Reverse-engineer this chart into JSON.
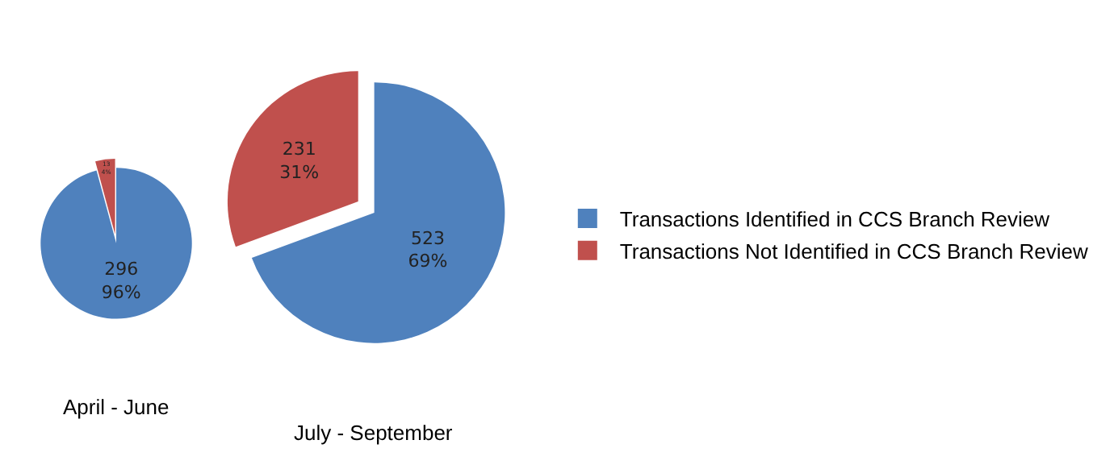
{
  "chart_data": [
    {
      "type": "pie",
      "title": "April - June",
      "categories": [
        null,
        null
      ],
      "values": [
        296,
        13
      ],
      "colors": [
        "#4f81bd",
        "#c0504d"
      ],
      "value_labels": [
        "296\n96%",
        "13\n4%"
      ]
    },
    {
      "type": "pie",
      "title": "July - September",
      "categories": [
        "Transactions Identified in CCS Branch Review",
        "Transactions Not Identified in CCS Branch Review"
      ],
      "values": [
        523,
        231
      ],
      "colors": [
        "#4f81bd",
        "#c0504d"
      ],
      "value_labels": [
        "523\n69%",
        "231\n31%"
      ],
      "legend": "right"
    }
  ]
}
